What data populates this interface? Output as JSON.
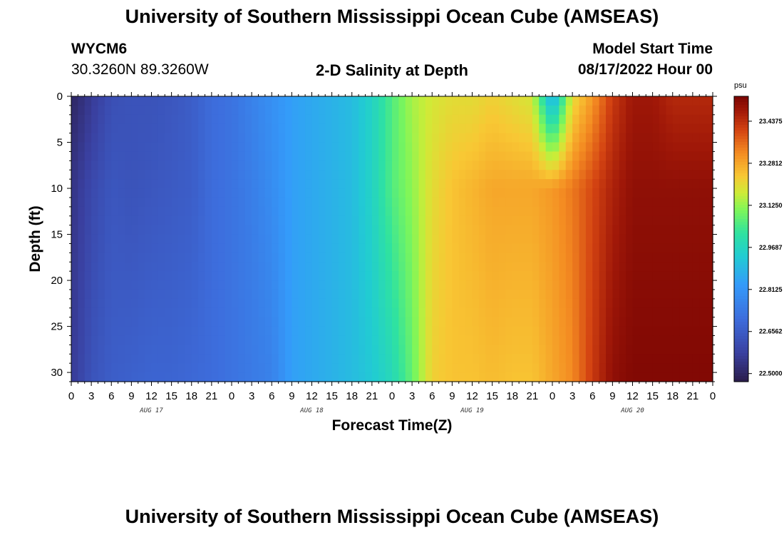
{
  "page": {
    "title": "University of Southern Mississippi Ocean Cube (AMSEAS)",
    "footer_title": "University of Southern Mississippi Ocean Cube (AMSEAS)",
    "station_id": "WYCM6",
    "location": "30.3260N  89.3260W",
    "plot_title": "2-D Salinity at Depth",
    "model_start_label": "Model Start Time",
    "model_start_value": "08/17/2022 Hour 00"
  },
  "chart_data": {
    "type": "heatmap",
    "title": "2-D Salinity at Depth",
    "xlabel": "Forecast Time(Z)",
    "ylabel": "Depth (ft)",
    "units": "psu",
    "x_hours": [
      0,
      96
    ],
    "y_range": [
      0,
      31
    ],
    "y_inverted": true,
    "x_tick_hours": [
      0,
      3,
      6,
      9,
      12,
      15,
      18,
      21,
      24,
      27,
      30,
      33,
      36,
      39,
      42,
      45,
      48,
      51,
      54,
      57,
      60,
      63,
      66,
      69,
      72,
      75,
      78,
      81,
      84,
      87,
      90,
      93,
      96
    ],
    "x_tick_labels": [
      "0",
      "3",
      "6",
      "9",
      "12",
      "15",
      "18",
      "21",
      "0",
      "3",
      "6",
      "9",
      "12",
      "15",
      "18",
      "21",
      "0",
      "3",
      "6",
      "9",
      "12",
      "15",
      "18",
      "21",
      "0",
      "3",
      "6",
      "9",
      "12",
      "15",
      "18",
      "21",
      "0"
    ],
    "y_ticks": [
      0,
      5,
      10,
      15,
      20,
      25,
      30
    ],
    "y_tick_labels": [
      "0",
      "5",
      "10",
      "15",
      "20",
      "25",
      "30"
    ],
    "date_labels": [
      {
        "text": "AUG 17",
        "hour": 12
      },
      {
        "text": "AUG 18",
        "hour": 36
      },
      {
        "text": "AUG 19",
        "hour": 60
      },
      {
        "text": "AUG 20",
        "hour": 84
      }
    ],
    "colorbar": {
      "min": 22.47,
      "max": 23.53,
      "labels": [
        "23.4375",
        "23.2812",
        "23.1250",
        "22.9687",
        "22.8125",
        "22.6562",
        "22.5000"
      ],
      "values": [
        23.4375,
        23.28125,
        23.125,
        22.96875,
        22.8125,
        22.65625,
        22.5
      ]
    },
    "salinity_profile": {
      "hours": [
        0,
        3,
        6,
        9,
        12,
        15,
        18,
        21,
        24,
        27,
        30,
        33,
        36,
        39,
        42,
        45,
        48,
        51,
        54,
        57,
        60,
        63,
        66,
        69,
        72,
        75,
        78,
        81,
        84,
        87,
        90,
        93,
        96
      ],
      "surface": [
        22.5,
        22.56,
        22.62,
        22.63,
        22.63,
        22.64,
        22.66,
        22.7,
        22.72,
        22.76,
        22.8,
        22.84,
        22.86,
        22.88,
        22.9,
        22.96,
        23.06,
        23.14,
        23.18,
        23.2,
        23.2,
        23.22,
        23.2,
        23.18,
        22.85,
        23.2,
        23.3,
        23.42,
        23.48,
        23.48,
        23.45,
        23.45,
        23.45
      ],
      "depth10": [
        22.54,
        22.6,
        22.64,
        22.63,
        22.64,
        22.65,
        22.66,
        22.7,
        22.72,
        22.75,
        22.79,
        22.84,
        22.86,
        22.88,
        22.9,
        22.96,
        23.06,
        23.12,
        23.2,
        23.24,
        23.26,
        23.28,
        23.28,
        23.28,
        23.3,
        23.34,
        23.4,
        23.46,
        23.5,
        23.5,
        23.5,
        23.5,
        23.5
      ],
      "bottom": [
        22.56,
        22.63,
        22.66,
        22.67,
        22.68,
        22.68,
        22.69,
        22.7,
        22.72,
        22.74,
        22.76,
        22.84,
        22.86,
        22.88,
        22.9,
        22.93,
        22.98,
        23.08,
        23.22,
        23.24,
        23.24,
        23.25,
        23.24,
        23.24,
        23.28,
        23.32,
        23.42,
        23.5,
        23.52,
        23.52,
        23.52,
        23.52,
        23.52
      ]
    }
  }
}
